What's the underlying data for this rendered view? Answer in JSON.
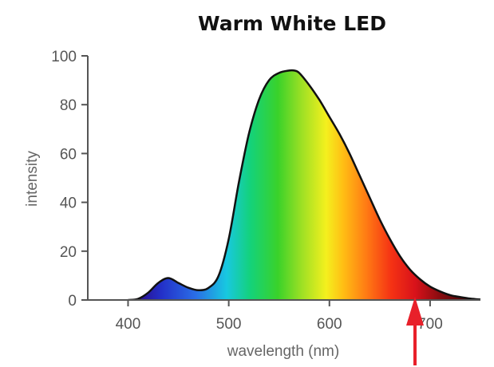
{
  "chart_data": {
    "type": "area",
    "title": "Warm White LED",
    "xlabel": "wavelength (nm)",
    "ylabel": "intensity",
    "xlim": [
      360,
      750
    ],
    "ylim": [
      0,
      100
    ],
    "x_ticks": [
      "400",
      "500",
      "600",
      "700"
    ],
    "y_ticks": [
      "0",
      "20",
      "40",
      "60",
      "80",
      "100"
    ],
    "grid": false,
    "series": [
      {
        "x": [
          400,
          410,
          420,
          430,
          440,
          450,
          460,
          470,
          480,
          490,
          500,
          510,
          520,
          530,
          540,
          550,
          560,
          565,
          570,
          580,
          590,
          600,
          610,
          620,
          630,
          640,
          650,
          660,
          670,
          680,
          690,
          700,
          710,
          720,
          730,
          740,
          750
        ],
        "y": [
          0,
          0.5,
          3,
          7,
          9,
          7,
          5,
          4,
          5,
          10,
          25,
          48,
          68,
          82,
          90,
          93,
          94,
          94,
          93,
          88,
          82,
          75,
          68,
          60,
          51,
          42,
          33,
          25,
          18,
          12.5,
          8.5,
          5.5,
          3.5,
          2,
          1.2,
          0.6,
          0.2
        ]
      }
    ],
    "annotations": [
      {
        "type": "arrow",
        "x": 685,
        "color": "#e8202a"
      }
    ]
  }
}
